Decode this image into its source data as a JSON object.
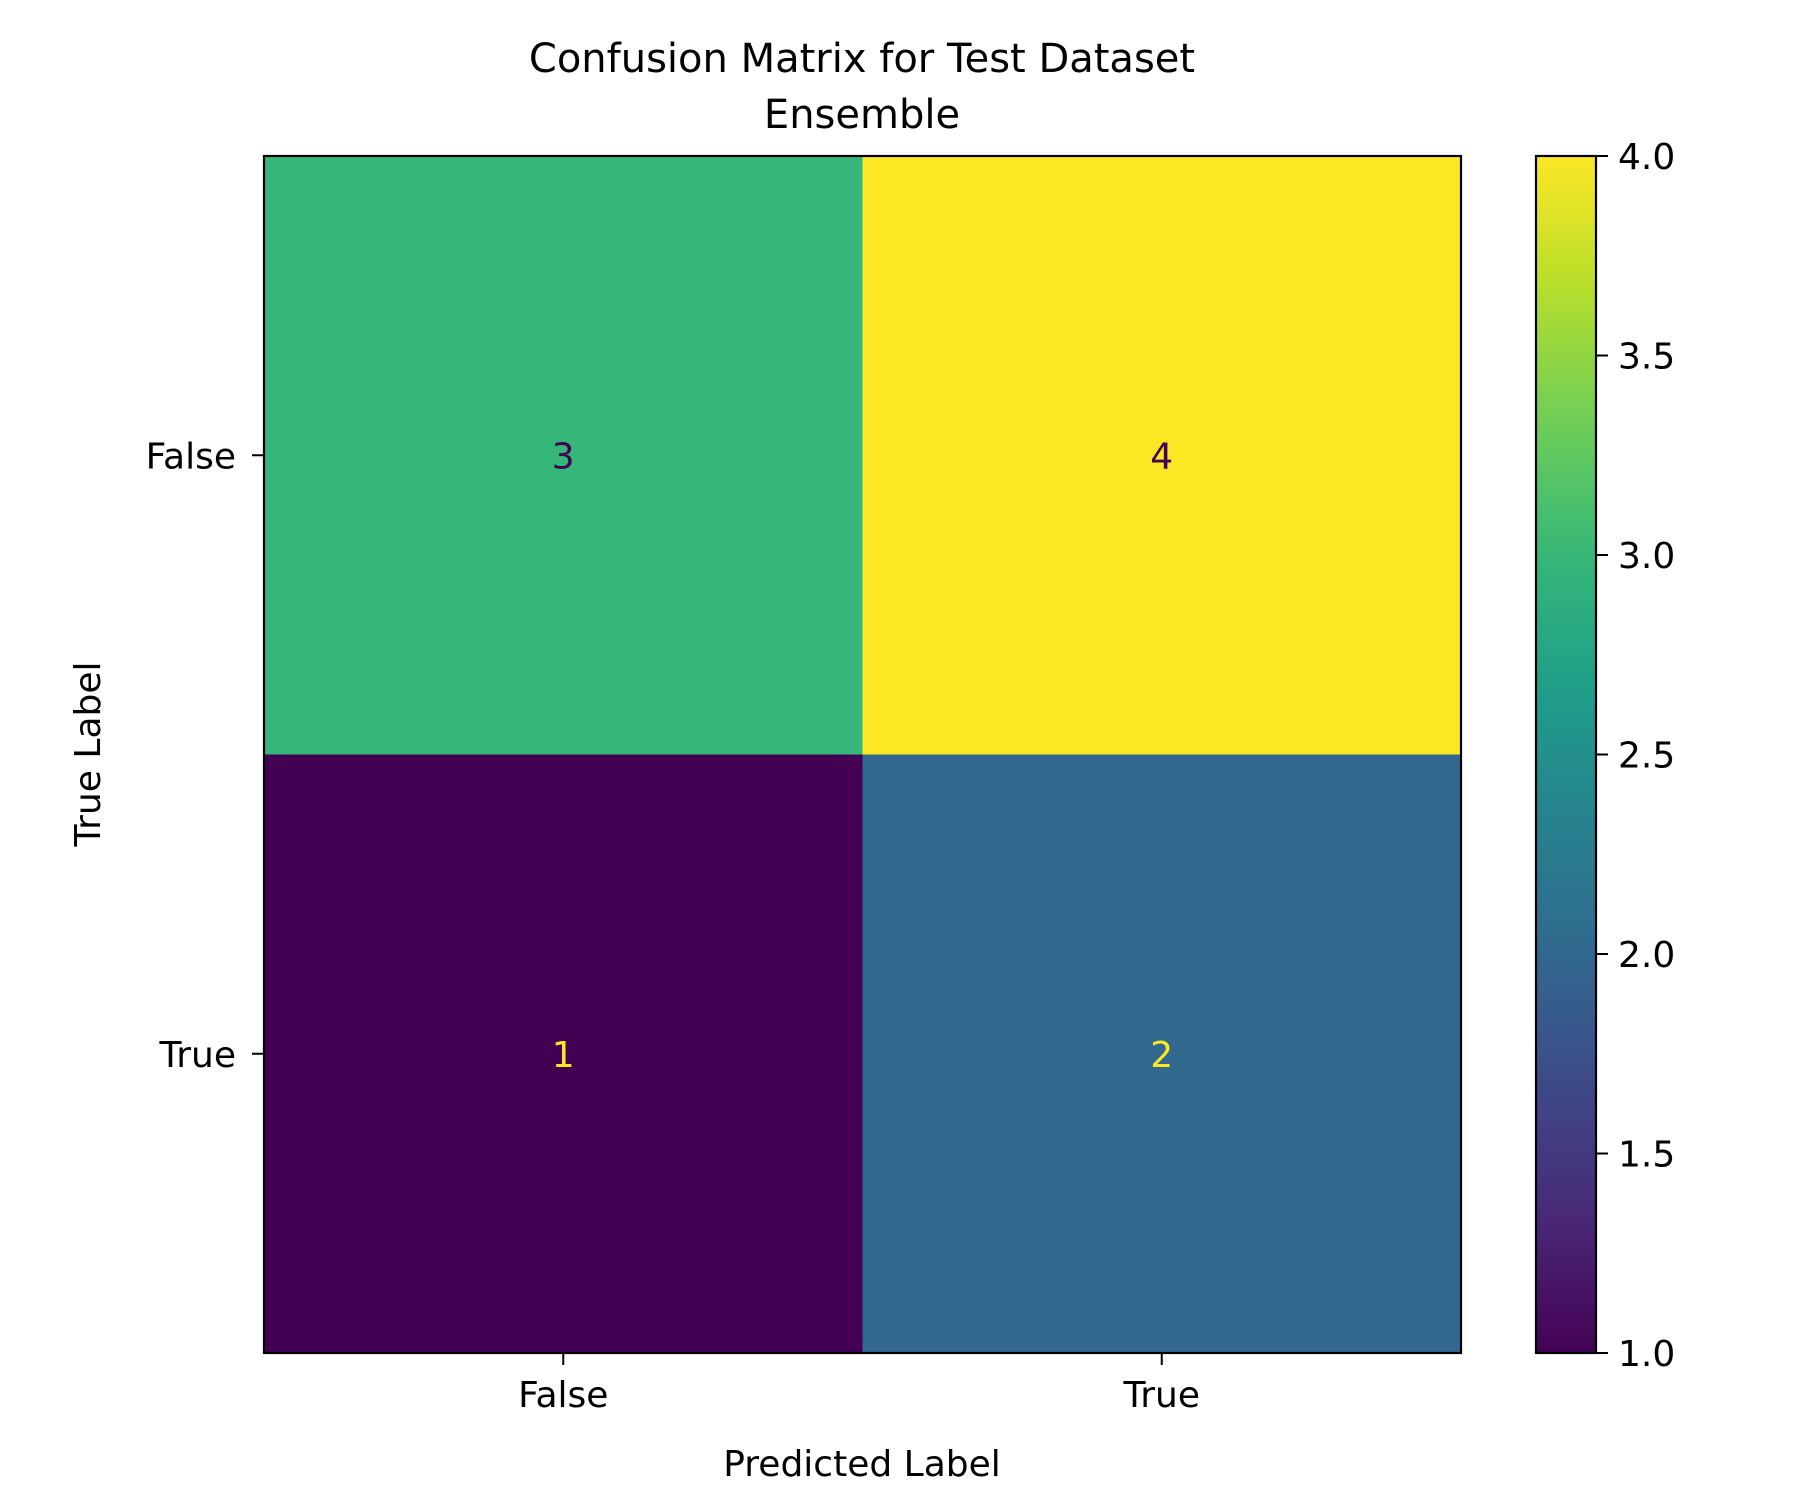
{
  "chart_data": {
    "type": "heatmap",
    "title": "Confusion Matrix for Test Dataset",
    "subtitle": "Ensemble",
    "xlabel": "Predicted Label",
    "ylabel": "True Label",
    "x_categories": [
      "False",
      "True"
    ],
    "y_categories": [
      "False",
      "True"
    ],
    "values": [
      [
        3,
        4
      ],
      [
        1,
        2
      ]
    ],
    "value_labels": [
      [
        "3",
        "4"
      ],
      [
        "1",
        "2"
      ]
    ],
    "colormap": "viridis",
    "colorbar": {
      "range": [
        1.0,
        4.0
      ],
      "ticks": [
        1.0,
        1.5,
        2.0,
        2.5,
        3.0,
        3.5,
        4.0
      ],
      "tick_labels": [
        "1.0",
        "1.5",
        "2.0",
        "2.5",
        "3.0",
        "3.5",
        "4.0"
      ]
    },
    "text_colors": {
      "on_dark": "#fde725",
      "on_light": "#440154"
    },
    "grid": false
  }
}
